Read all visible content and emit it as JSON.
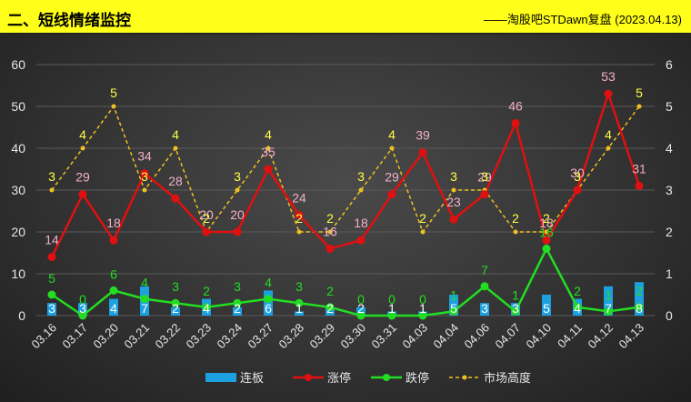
{
  "header": {
    "title": "二、短线情绪监控",
    "subtitle": "——淘股吧STDawn复盘 (2023.04.13)"
  },
  "colors": {
    "header_bg": "#ffff19",
    "lianban": "#1ca0e0",
    "zhangting": "#e01010",
    "dieting": "#22dd22",
    "height": "#f0c020",
    "zhangting_label": "#f4b0c8",
    "dieting_label": "#22dd22",
    "lianban_label": "#ffffff",
    "height_label": "#ffff44"
  },
  "chart_data": {
    "type": "bar+line",
    "categories": [
      "03.16",
      "03.17",
      "03.20",
      "03.21",
      "03.22",
      "03.23",
      "03.24",
      "03.27",
      "03.28",
      "03.29",
      "03.30",
      "03.31",
      "04.03",
      "04.04",
      "04.06",
      "04.07",
      "04.10",
      "04.11",
      "04.12",
      "04.13"
    ],
    "y_left": {
      "ylim": [
        0,
        60
      ],
      "ticks": [
        0,
        10,
        20,
        30,
        40,
        50,
        60
      ]
    },
    "y_right": {
      "ylim": [
        0,
        6
      ],
      "ticks": [
        0,
        1,
        2,
        3,
        4,
        5,
        6
      ]
    },
    "grid": true,
    "legend_position": "bottom",
    "series": [
      {
        "name": "连板",
        "kind": "bar",
        "axis": "left",
        "values": [
          3,
          3,
          4,
          7,
          2,
          4,
          2,
          6,
          1,
          2,
          2,
          1,
          1,
          5,
          3,
          3,
          5,
          4,
          7,
          8
        ]
      },
      {
        "name": "涨停",
        "kind": "line",
        "axis": "left",
        "values": [
          14,
          29,
          18,
          34,
          28,
          20,
          20,
          35,
          24,
          16,
          18,
          29,
          39,
          23,
          29,
          46,
          18,
          30,
          53,
          31
        ]
      },
      {
        "name": "跌停",
        "kind": "line",
        "axis": "left",
        "values": [
          5,
          0,
          6,
          4,
          3,
          2,
          3,
          4,
          3,
          2,
          0,
          0,
          0,
          1,
          7,
          1,
          16,
          2,
          1,
          2
        ]
      },
      {
        "name": "市场高度",
        "kind": "dashed-line",
        "axis": "right",
        "values": [
          3,
          4,
          5,
          3,
          4,
          2,
          3,
          4,
          2,
          2,
          3,
          4,
          2,
          3,
          3,
          2,
          2,
          3,
          4,
          5
        ]
      }
    ]
  }
}
